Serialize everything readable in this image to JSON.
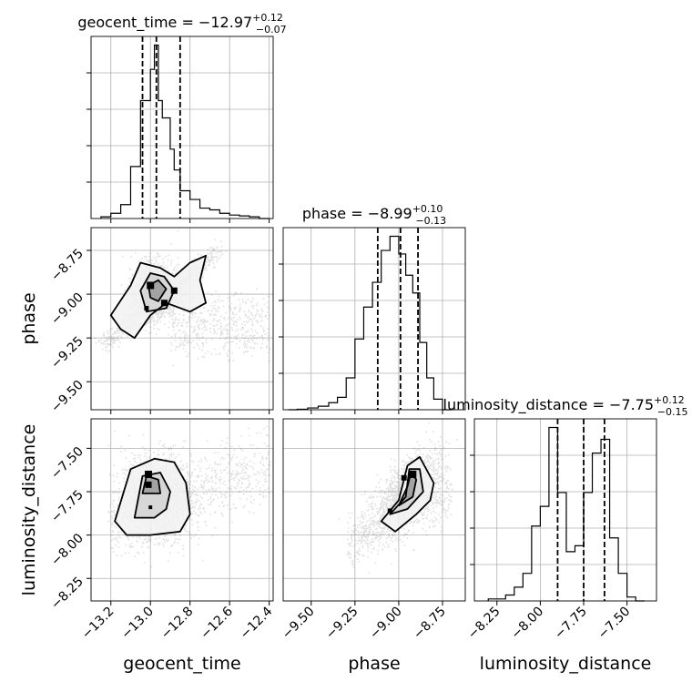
{
  "chart_data": {
    "type": "corner",
    "parameters": [
      "geocent_time",
      "phase",
      "luminosity_distance"
    ],
    "axis_labels": {
      "geocent_time": "geocent_time",
      "phase": "phase",
      "luminosity_distance": "luminosity_distance"
    },
    "ranges": {
      "geocent_time": [
        -13.3,
        -12.38
      ],
      "phase": [
        -9.66,
        -8.62
      ],
      "luminosity_distance": [
        -8.38,
        -7.33
      ]
    },
    "ticks": {
      "geocent_time": [
        {
          "v": -13.2,
          "label": "−13.2"
        },
        {
          "v": -13.0,
          "label": "−13.0"
        },
        {
          "v": -12.8,
          "label": "−12.8"
        },
        {
          "v": -12.6,
          "label": "−12.6"
        },
        {
          "v": -12.4,
          "label": "−12.4"
        }
      ],
      "phase": [
        {
          "v": -9.5,
          "label": "−9.50"
        },
        {
          "v": -9.25,
          "label": "−9.25"
        },
        {
          "v": -9.0,
          "label": "−9.00"
        },
        {
          "v": -8.75,
          "label": "−8.75"
        }
      ],
      "luminosity_distance": [
        {
          "v": -8.25,
          "label": "−8.25"
        },
        {
          "v": -8.0,
          "label": "−8.00"
        },
        {
          "v": -7.75,
          "label": "−7.75"
        },
        {
          "v": -7.5,
          "label": "−7.50"
        }
      ]
    },
    "titles": {
      "geocent_time": {
        "main": "geocent_time = −12.97",
        "sup": "+0.12",
        "sub": "−0.07"
      },
      "phase": {
        "main": "phase = −8.99",
        "sup": "+0.10",
        "sub": "−0.13"
      },
      "luminosity_distance": {
        "main": "luminosity_distance = −7.75",
        "sup": "+0.12",
        "sub": "−0.15"
      }
    },
    "quantiles": {
      "geocent_time": [
        -13.04,
        -12.97,
        -12.85
      ],
      "phase": [
        -9.12,
        -8.99,
        -8.89
      ],
      "luminosity_distance": [
        -7.9,
        -7.75,
        -7.63
      ]
    },
    "histograms": {
      "geocent_time": {
        "edges": [
          -13.25,
          -13.2,
          -13.15,
          -13.1,
          -13.05,
          -13.0,
          -12.98,
          -12.96,
          -12.94,
          -12.92,
          -12.9,
          -12.88,
          -12.85,
          -12.8,
          -12.75,
          -12.7,
          -12.65,
          -12.6,
          -12.55,
          -12.5,
          -12.45,
          -12.4
        ],
        "counts": [
          1,
          3,
          8,
          30,
          68,
          86,
          100,
          68,
          58,
          58,
          40,
          28,
          16,
          11,
          6,
          5,
          3,
          2,
          1.5,
          1,
          0
        ]
      },
      "phase": {
        "edges": [
          -9.63,
          -9.58,
          -9.52,
          -9.46,
          -9.4,
          -9.35,
          -9.3,
          -9.25,
          -9.2,
          -9.15,
          -9.1,
          -9.05,
          -9.0,
          -8.96,
          -8.92,
          -8.88,
          -8.84,
          -8.8,
          -8.75,
          -8.7
        ],
        "counts": [
          0,
          0.3,
          1,
          2,
          4,
          7,
          18,
          40,
          58,
          72,
          90,
          98,
          88,
          76,
          66,
          38,
          18,
          6,
          0
        ]
      },
      "luminosity_distance": {
        "edges": [
          -8.3,
          -8.2,
          -8.15,
          -8.1,
          -8.05,
          -8.0,
          -7.95,
          -7.9,
          -7.85,
          -7.8,
          -7.75,
          -7.7,
          -7.65,
          -7.6,
          -7.55,
          -7.5,
          -7.45,
          -7.4
        ],
        "counts": [
          1,
          3,
          7,
          14,
          38,
          48,
          88,
          55,
          25,
          28,
          55,
          75,
          82,
          32,
          14,
          2,
          0
        ]
      }
    },
    "grid": true
  }
}
